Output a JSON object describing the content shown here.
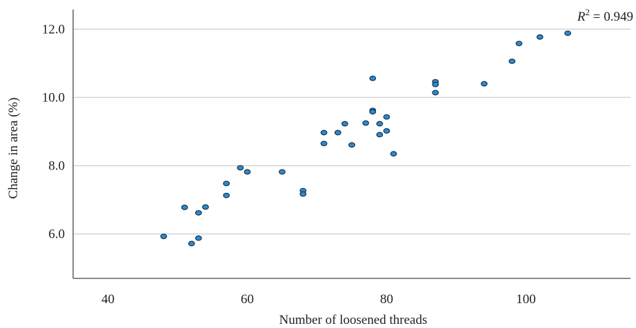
{
  "chart_data": {
    "type": "scatter",
    "title": "",
    "xlabel": "Number of loosened threads",
    "ylabel": "Change in area (%)",
    "annotation": {
      "var": "R",
      "exp": "2",
      "rest": " = 0.949"
    },
    "xlim": [
      35,
      115
    ],
    "ylim": [
      4.7,
      12.45
    ],
    "xticks": [
      40,
      60,
      80,
      100
    ],
    "xtick_labels": [
      "40",
      "60",
      "80",
      "100"
    ],
    "yticks": [
      6,
      8,
      10,
      12
    ],
    "ytick_labels": [
      "6.0",
      "8.0",
      "10.0",
      "12.0"
    ],
    "grid": "horizontal",
    "legend": "none",
    "marker_color": "#2e8bcf",
    "marker_edge_color": "#16324a",
    "points": [
      {
        "x": 48,
        "y": 5.93
      },
      {
        "x": 51,
        "y": 6.78
      },
      {
        "x": 52,
        "y": 5.72
      },
      {
        "x": 53,
        "y": 5.88
      },
      {
        "x": 53,
        "y": 6.62
      },
      {
        "x": 54,
        "y": 6.79
      },
      {
        "x": 57,
        "y": 7.13
      },
      {
        "x": 57,
        "y": 7.48
      },
      {
        "x": 59,
        "y": 7.94
      },
      {
        "x": 60,
        "y": 7.82
      },
      {
        "x": 65,
        "y": 7.82
      },
      {
        "x": 68,
        "y": 7.27
      },
      {
        "x": 68,
        "y": 7.17
      },
      {
        "x": 71,
        "y": 8.97
      },
      {
        "x": 71,
        "y": 8.65
      },
      {
        "x": 73,
        "y": 8.97
      },
      {
        "x": 74,
        "y": 9.23
      },
      {
        "x": 75,
        "y": 8.61
      },
      {
        "x": 77,
        "y": 9.25
      },
      {
        "x": 78,
        "y": 10.56
      },
      {
        "x": 78,
        "y": 9.62
      },
      {
        "x": 78,
        "y": 9.58
      },
      {
        "x": 79,
        "y": 9.23
      },
      {
        "x": 79,
        "y": 8.91
      },
      {
        "x": 80,
        "y": 9.43
      },
      {
        "x": 80,
        "y": 9.02
      },
      {
        "x": 81,
        "y": 8.35
      },
      {
        "x": 87,
        "y": 10.46
      },
      {
        "x": 87,
        "y": 10.38
      },
      {
        "x": 87,
        "y": 10.14
      },
      {
        "x": 94,
        "y": 10.4
      },
      {
        "x": 98,
        "y": 11.06
      },
      {
        "x": 99,
        "y": 11.58
      },
      {
        "x": 102,
        "y": 11.77
      },
      {
        "x": 106,
        "y": 11.88
      }
    ]
  }
}
